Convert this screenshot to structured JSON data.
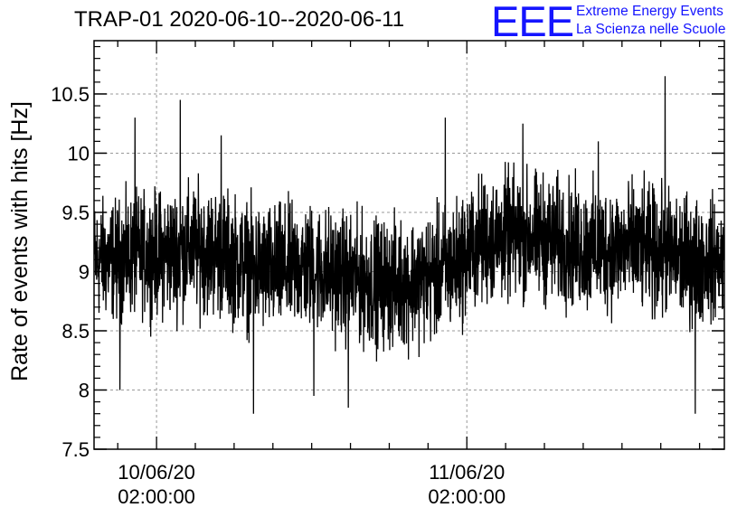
{
  "logo": {
    "mark": "EEE",
    "line1": "Extreme Energy Events",
    "line2": "La Scienza nelle Scuole"
  },
  "chart_data": {
    "type": "line",
    "title": "TRAP-01 2020-06-10--2020-06-11",
    "ylabel": "Rate of events with hits [Hz]",
    "xlabel": "",
    "ylim": [
      7.5,
      10.95
    ],
    "yticks": [
      7.5,
      8,
      8.5,
      9,
      9.5,
      10,
      10.5
    ],
    "ytick_labels": [
      "7.5",
      "8",
      "8.5",
      "9",
      "9.5",
      "10",
      "10.5"
    ],
    "xticks": [
      {
        "date": "2020-06-10 02:00:00",
        "label_line1": "10/06/20",
        "label_line2": "02:00:00"
      },
      {
        "date": "2020-06-11 02:00:00",
        "label_line1": "11/06/20",
        "label_line2": "02:00:00"
      }
    ],
    "xlim": [
      "2020-06-09 21:10:00",
      "2020-06-11 21:55:00"
    ],
    "grid": true,
    "line_color": "#000000",
    "series": [
      {
        "x": [
          "2020-06-09 23:00",
          "2020-06-10 01:00",
          "2020-06-10 03:00",
          "2020-06-10 05:00",
          "2020-06-10 07:00",
          "2020-06-10 09:00",
          "2020-06-10 11:00",
          "2020-06-10 13:00",
          "2020-06-10 15:00",
          "2020-06-10 17:00",
          "2020-06-10 19:00",
          "2020-06-10 21:00",
          "2020-06-10 23:00",
          "2020-06-11 01:00",
          "2020-06-11 03:00",
          "2020-06-11 05:00",
          "2020-06-11 07:00",
          "2020-06-11 09:00",
          "2020-06-11 11:00",
          "2020-06-11 13:00",
          "2020-06-11 15:00",
          "2020-06-11 17:00",
          "2020-06-11 19:00",
          "2020-06-11 21:00"
        ],
        "values": [
          9.1,
          9.15,
          9.15,
          9.2,
          9.15,
          9.05,
          9.0,
          9.05,
          9.0,
          8.95,
          8.9,
          8.9,
          8.95,
          9.05,
          9.25,
          9.3,
          9.3,
          9.25,
          9.2,
          9.2,
          9.2,
          9.15,
          9.1,
          9.1
        ],
        "spread": [
          0.42,
          0.42,
          0.45,
          0.45,
          0.45,
          0.45,
          0.45,
          0.45,
          0.45,
          0.45,
          0.45,
          0.45,
          0.45,
          0.45,
          0.45,
          0.45,
          0.45,
          0.45,
          0.45,
          0.45,
          0.45,
          0.45,
          0.45,
          0.42
        ],
        "peaks": [
          {
            "x": "2020-06-09 23:10",
            "value": 8.0
          },
          {
            "x": "2020-06-10 00:20",
            "value": 10.3
          },
          {
            "x": "2020-06-10 03:50",
            "value": 10.45
          },
          {
            "x": "2020-06-10 07:00",
            "value": 10.15
          },
          {
            "x": "2020-06-10 09:30",
            "value": 7.8
          },
          {
            "x": "2020-06-10 14:10",
            "value": 7.95
          },
          {
            "x": "2020-06-10 16:50",
            "value": 7.85
          },
          {
            "x": "2020-06-11 00:20",
            "value": 10.3
          },
          {
            "x": "2020-06-11 06:20",
            "value": 10.25
          },
          {
            "x": "2020-06-11 12:10",
            "value": 10.1
          },
          {
            "x": "2020-06-11 17:20",
            "value": 10.65
          },
          {
            "x": "2020-06-11 19:40",
            "value": 7.8
          }
        ]
      }
    ]
  }
}
